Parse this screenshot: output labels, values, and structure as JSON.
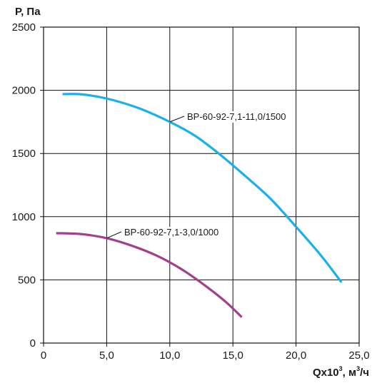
{
  "chart_data": {
    "type": "line",
    "ylabel": "P, Па",
    "xlabel": {
      "prefix": "Qx10",
      "sup": "3",
      "mid": ", м",
      "sup2": "3",
      "suffix": "/ч"
    },
    "xlim": [
      0,
      25
    ],
    "ylim": [
      0,
      2500
    ],
    "x_ticks": [
      0,
      5,
      10,
      15,
      20,
      25
    ],
    "x_tick_labels": [
      "0",
      "5,0",
      "10,0",
      "15,0",
      "20,0",
      "25,0"
    ],
    "y_ticks": [
      0,
      500,
      1000,
      1500,
      2000,
      2500
    ],
    "y_tick_labels": [
      "0",
      "500",
      "1000",
      "1500",
      "2000",
      "2500"
    ],
    "grid": true,
    "series": [
      {
        "name": "ВР-60-92-7,1-11,0/1500",
        "color": "#1ab0e8",
        "x": [
          1.5,
          3.0,
          5.0,
          7.5,
          10.0,
          12.0,
          14.0,
          16.0,
          18.0,
          20.0,
          22.0,
          23.6
        ],
        "y": [
          1970,
          1968,
          1935,
          1860,
          1750,
          1640,
          1490,
          1320,
          1140,
          920,
          690,
          480
        ]
      },
      {
        "name": "ВР-60-92-7,1-3,0/1000",
        "color": "#a2418a",
        "x": [
          1.0,
          3.0,
          5.0,
          7.0,
          9.0,
          11.0,
          13.0,
          14.5,
          15.7
        ],
        "y": [
          870,
          862,
          830,
          770,
          690,
          580,
          440,
          320,
          205
        ]
      }
    ],
    "annotations": [
      {
        "text": "ВР-60-92-7,1-11,0/1500",
        "series": 0,
        "anchor_x": 10.0,
        "anchor_y": 1750
      },
      {
        "text": "ВР-60-92-7,1-3,0/1000",
        "series": 1,
        "anchor_x": 5.0,
        "anchor_y": 830
      }
    ]
  }
}
